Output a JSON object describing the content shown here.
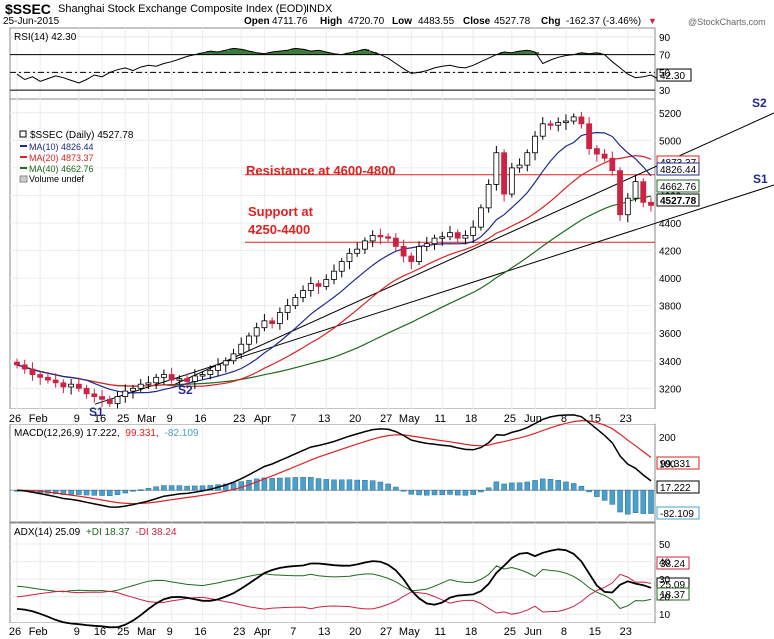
{
  "header": {
    "symbol": "$SSEC",
    "name": "Shanghai Stock Exchange Composite Index (EOD)",
    "exchange": "INDX",
    "date": "25-Jun-2015",
    "open_label": "Open",
    "open": "4711.76",
    "high_label": "High",
    "high": "4720.70",
    "low_label": "Low",
    "low": "4483.55",
    "close_label": "Close",
    "close": "4527.78",
    "chg_label": "Chg",
    "chg": "-162.37 (-3.46%)",
    "watermark": "@StockCharts.com"
  },
  "colors": {
    "up": "#ffffff",
    "down": "#cc2244",
    "ma10": "#1f2a8c",
    "ma20": "#dd2222",
    "ma40": "#1e6b1e",
    "rsi_fill": "#3d7a3d",
    "histogram": "#4a9fcc",
    "annotation": "#dd2222",
    "trend_label": "#1f2a8c"
  },
  "chart_data": [
    {
      "type": "line",
      "panel": "rsi",
      "title": "RSI(14) 42.30",
      "ylim": [
        20,
        100
      ],
      "ticks": [
        90,
        70,
        50,
        30
      ],
      "reference_lines": [
        70,
        50,
        30
      ],
      "last_value_label": "42.30",
      "values": [
        48,
        42,
        45,
        40,
        43,
        46,
        44,
        41,
        38,
        42,
        47,
        45,
        50,
        53,
        55,
        52,
        56,
        58,
        57,
        60,
        62,
        65,
        68,
        70,
        72,
        74,
        73,
        75,
        77,
        76,
        74,
        72,
        71,
        73,
        74,
        75,
        77,
        76,
        74,
        75,
        73,
        71,
        70,
        72,
        74,
        76,
        73,
        70,
        66,
        60,
        54,
        49,
        50,
        52,
        55,
        57,
        58,
        56,
        55,
        58,
        62,
        66,
        70,
        73,
        72,
        74,
        75,
        73,
        60,
        64,
        67,
        69,
        70,
        72,
        71,
        72,
        70,
        62,
        55,
        48,
        44,
        45,
        47,
        42.3
      ]
    },
    {
      "type": "candlestick",
      "panel": "price",
      "title": "$SSEC (Daily) 4527.78",
      "ylim": [
        3050,
        5300
      ],
      "ticks": [
        5200,
        5000,
        4800,
        4600,
        4400,
        4200,
        4000,
        3800,
        3600,
        3400,
        3200
      ],
      "x_tick_labels": [
        "26",
        "Feb",
        "9",
        "16",
        "25",
        "Mar",
        "9",
        "16",
        "23",
        "Apr",
        "7",
        "13",
        "20",
        "27",
        "May",
        "11",
        "18",
        "25",
        "Jun",
        "8",
        "15",
        "23"
      ],
      "close": [
        3370,
        3340,
        3300,
        3280,
        3260,
        3240,
        3210,
        3230,
        3200,
        3160,
        3140,
        3120,
        3090,
        3140,
        3180,
        3200,
        3230,
        3240,
        3280,
        3300,
        3260,
        3270,
        3250,
        3290,
        3300,
        3330,
        3370,
        3400,
        3450,
        3520,
        3580,
        3640,
        3690,
        3670,
        3750,
        3800,
        3860,
        3910,
        3960,
        3940,
        3990,
        4050,
        4120,
        4180,
        4210,
        4270,
        4310,
        4300,
        4290,
        4230,
        4160,
        4120,
        4230,
        4250,
        4290,
        4300,
        4330,
        4290,
        4310,
        4370,
        4510,
        4680,
        4910,
        4610,
        4800,
        4820,
        4910,
        5030,
        5120,
        5110,
        5130,
        5140,
        5170,
        5120,
        4940,
        4900,
        4870,
        4780,
        4460,
        4580,
        4700,
        4550,
        4527.78
      ],
      "series": [
        {
          "name": "MA(10) 4826.44",
          "last": 4826.44
        },
        {
          "name": "MA(20) 4873.37",
          "last": 4873.37
        },
        {
          "name": "MA(40) 4662.76",
          "last": 4662.76
        }
      ],
      "legend_extra": "Volume undef",
      "price_labels": [
        "4873.37",
        "4826.44",
        "4662.76",
        "4527.78"
      ],
      "annotations": {
        "resistance_text": "Resistance at 4600-4800",
        "resistance_level": 4750,
        "support_text_1": "Support at",
        "support_text_2": "4250-4400",
        "support_level": 4260,
        "s1": "S1",
        "s2": "S2"
      }
    },
    {
      "type": "line",
      "panel": "macd",
      "title": "MACD(12,26,9) 17.222, 99.331, -82.109",
      "title_main": "MACD(12,26,9) 17.222,",
      "title_signal": "99.331,",
      "title_hist": "-82.109",
      "ylim": [
        -120,
        250
      ],
      "ticks": [
        200,
        100
      ],
      "labels": [
        "99.331",
        "17.222",
        "-82.109"
      ]
    },
    {
      "type": "line",
      "panel": "adx",
      "title": "ADX(14) 25.09 +DI 18.37 -DI 38.24",
      "title_adx": "ADX(14) 25.09",
      "title_pdi": "+DI 18.37",
      "title_mdi": "-DI 38.24",
      "ylim": [
        5,
        62
      ],
      "ticks": [
        50,
        40,
        30,
        20,
        10
      ],
      "labels": [
        "38.24",
        "25.09",
        "18.37"
      ]
    }
  ]
}
